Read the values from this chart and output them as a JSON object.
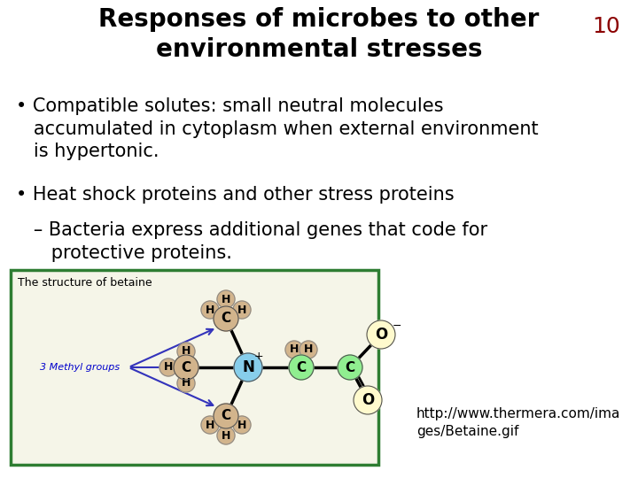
{
  "title_line1": "Responses of microbes to other",
  "title_line2": "environmental stresses",
  "slide_number": "10",
  "slide_number_color": "#8B0000",
  "title_color": "#000000",
  "title_fontsize": 20,
  "bullet1_text": "• Compatible solutes: small neutral molecules\n   accumulated in cytoplasm when external environment\n   is hypertonic.",
  "bullet2_text": "• Heat shock proteins and other stress proteins",
  "sub_bullet_text": "   – Bacteria express additional genes that code for\n      protective proteins.",
  "body_fontsize": 15,
  "body_color": "#000000",
  "bg_color": "#ffffff",
  "box_edge_color": "#2E7D32",
  "box_label": "The structure of betaine",
  "url_text": "http://www.thermera.com/ima\nges/Betaine.gif",
  "url_color": "#000000",
  "url_fontsize": 11,
  "n_color": "#87CEEB",
  "c_methyl_color": "#D2B48C",
  "c_chain_color": "#90EE90",
  "c_carb_color": "#90EE90",
  "o_color": "#FFFACD",
  "h_color": "#D2B48C",
  "arrow_color": "#3333BB",
  "label_color": "#0000CC"
}
